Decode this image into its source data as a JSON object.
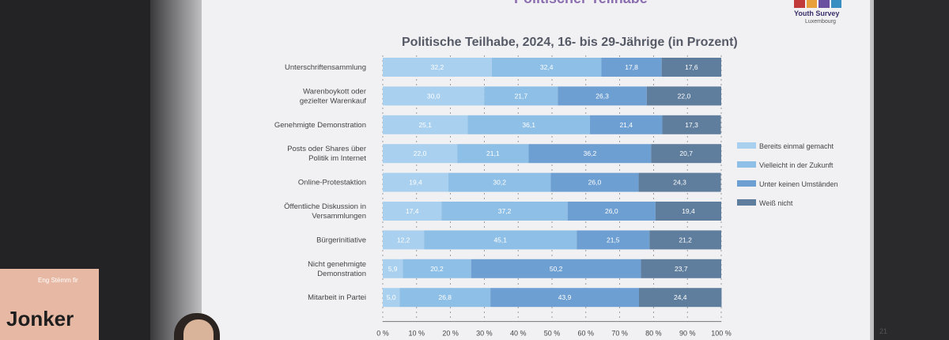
{
  "slide": {
    "top_title": "Politischer Teilhabe",
    "logo_text": "Youth Survey",
    "logo_sub": "Luxembourg",
    "page_number": "21"
  },
  "banner": {
    "small_text": "Eng Stëmm fir",
    "big_text": "Jonker"
  },
  "colors": {
    "series": [
      "#a9d0ef",
      "#8ebfe6",
      "#6e9fd2",
      "#5f7d9c"
    ],
    "grid": "#888888"
  },
  "chart_data": {
    "type": "bar",
    "orientation": "horizontal",
    "stacked": true,
    "title": "Politische Teilhabe, 2024, 16- bis 29-Jährige (in Prozent)",
    "categories": [
      "Unterschriftensammlung",
      "Warenboykott oder gezielter Warenkauf",
      "Genehmigte Demonstration",
      "Posts oder Shares über Politik im Internet",
      "Online-Protestaktion",
      "Öffentliche Diskussion in Versammlungen",
      "Bürgerinitiative",
      "Nicht genehmigte Demonstration",
      "Mitarbeit in Partei"
    ],
    "category_lines": [
      [
        "Unterschriftensammlung"
      ],
      [
        "Warenboykott oder",
        "gezielter Warenkauf"
      ],
      [
        "Genehmigte Demonstration"
      ],
      [
        "Posts oder Shares über",
        "Politik im Internet"
      ],
      [
        "Online-Protestaktion"
      ],
      [
        "Öffentliche Diskussion in",
        "Versammlungen"
      ],
      [
        "Bürgerinitiative"
      ],
      [
        "Nicht genehmigte",
        "Demonstration"
      ],
      [
        "Mitarbeit in Partei"
      ]
    ],
    "series": [
      {
        "name": "Bereits einmal gemacht",
        "values": [
          32.2,
          30.0,
          25.1,
          22.0,
          19.4,
          17.4,
          12.2,
          5.9,
          5.0
        ]
      },
      {
        "name": "Vielleicht in der Zukunft",
        "values": [
          32.4,
          21.7,
          36.1,
          21.1,
          30.2,
          37.2,
          45.1,
          20.2,
          26.8
        ]
      },
      {
        "name": "Unter keinen Umständen",
        "values": [
          17.8,
          26.3,
          21.4,
          36.2,
          26.0,
          26.0,
          21.5,
          50.2,
          43.9
        ]
      },
      {
        "name": "Weiß nicht",
        "values": [
          17.6,
          22.0,
          17.3,
          20.7,
          24.3,
          19.4,
          21.2,
          23.7,
          24.4
        ]
      }
    ],
    "value_labels": [
      [
        "32,2",
        "32,4",
        "17,8",
        "17,6"
      ],
      [
        "30,0",
        "21,7",
        "26,3",
        "22,0"
      ],
      [
        "25,1",
        "36,1",
        "21,4",
        "17,3"
      ],
      [
        "22,0",
        "21,1",
        "36,2",
        "20,7"
      ],
      [
        "19,4",
        "30,2",
        "26,0",
        "24,3"
      ],
      [
        "17,4",
        "37,2",
        "26,0",
        "19,4"
      ],
      [
        "12,2",
        "45,1",
        "21,5",
        "21,2"
      ],
      [
        "5,9",
        "20,2",
        "50,2",
        "23,7"
      ],
      [
        "5,0",
        "26,8",
        "43,9",
        "24,4"
      ]
    ],
    "xlim": [
      0,
      100
    ],
    "x_ticks": [
      "0 %",
      "10 %",
      "20 %",
      "30 %",
      "40 %",
      "50 %",
      "60 %",
      "70 %",
      "80 %",
      "90 %",
      "100 %"
    ],
    "grid": true,
    "legend_position": "right"
  }
}
